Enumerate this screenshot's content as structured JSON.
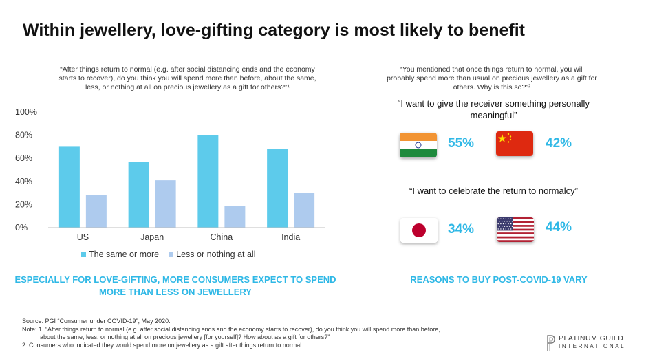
{
  "title": "Within jewellery, love-gifting category is most likely to benefit",
  "left_question": "“After things return to normal (e.g. after social distancing ends and the economy starts to recover), do you think you will spend more than before, about the same, less, or nothing at all on precious jewellery as a gift for others?”¹",
  "right_question": "“You mentioned that once things return to normal, you will probably spend more than usual on precious jewellery as a gift for others. Why is this so?”²",
  "chart_data": {
    "type": "bar",
    "categories": [
      "US",
      "Japan",
      "China",
      "India"
    ],
    "series": [
      {
        "name": "The same or more",
        "values": [
          70,
          57,
          80,
          68
        ],
        "color": "#5dcbeb"
      },
      {
        "name": "Less or nothing at all",
        "values": [
          28,
          41,
          19,
          30
        ],
        "color": "#aecbee"
      }
    ],
    "yticks": [
      "0%",
      "20%",
      "40%",
      "60%",
      "80%",
      "100%"
    ],
    "ylim": [
      0,
      100
    ],
    "grid": false,
    "legend_position": "bottom"
  },
  "left_takeaway": "ESPECIALLY FOR LOVE-GIFTING, MORE CONSUMERS EXPECT TO SPEND MORE THAN LESS ON JEWELLERY",
  "right_takeaway": "REASONS TO BUY POST-COVID-19 VARY",
  "reasons": {
    "quote_1": "“I want to give the receiver something personally meaningful”",
    "quote_2": "“I want to celebrate the return to normalcy”",
    "india_pct": "55%",
    "china_pct": "42%",
    "japan_pct": "34%",
    "us_pct": "44%",
    "india_flag": "india-flag-icon",
    "china_flag": "china-flag-icon",
    "japan_flag": "japan-flag-icon",
    "us_flag": "us-flag-icon"
  },
  "footnote": {
    "source": "Source: PGI “Consumer under COVID-19”, May 2020.",
    "note_1a": "Note: 1. “After things return to normal (e.g. after social distancing ends and the economy starts to recover), do you think you will spend more than before,",
    "note_1b": "about the same, less, or nothing at all on precious jewellery [for yourself]? How about as a gift for others?”",
    "note_2": "2. Consumers who indicated they would spend more on jewellery as a gift after things return to normal."
  },
  "logo": {
    "line1": "PLATINUM GUILD",
    "line2": "INTERNATIONAL",
    "icon": "platinum-guild-logo-icon"
  },
  "colors": {
    "accent": "#2fb8e6",
    "series_1": "#5dcbeb",
    "series_2": "#aecbee"
  }
}
